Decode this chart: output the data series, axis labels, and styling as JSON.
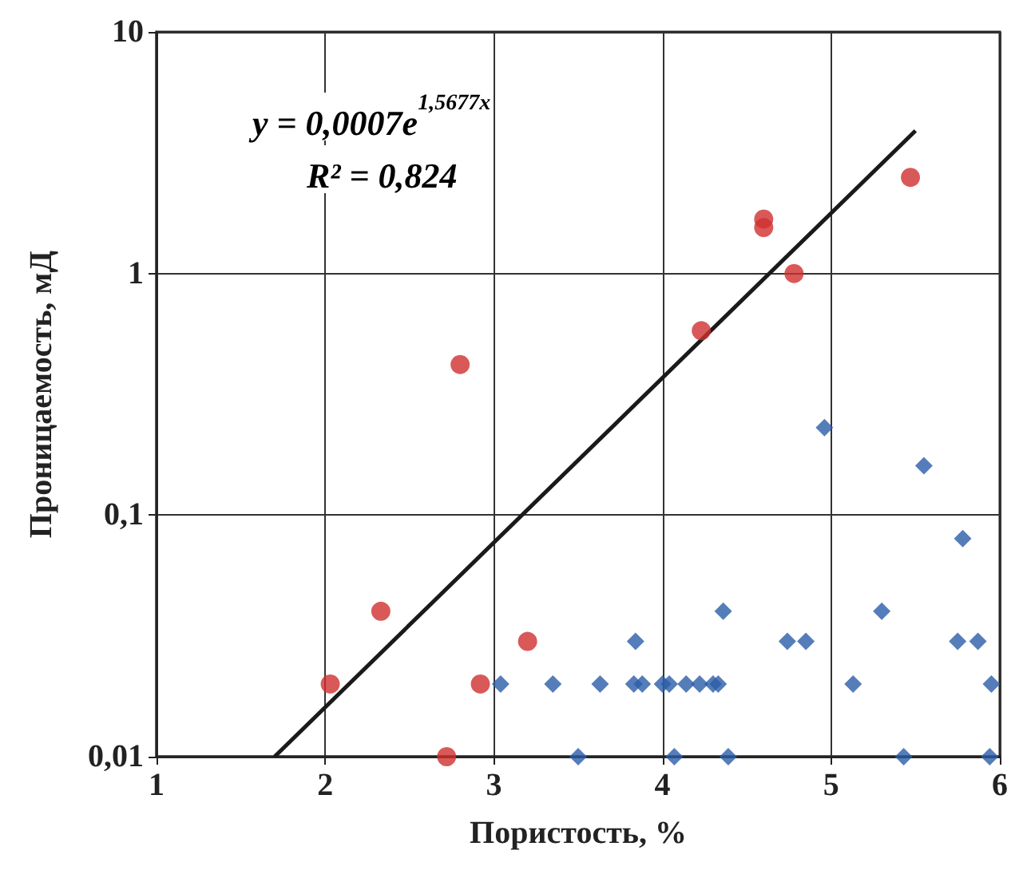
{
  "chart_data": {
    "type": "scatter",
    "xlabel": "Пористость, %",
    "ylabel": "Проницаемость, мД",
    "log": "y",
    "grid": true,
    "xlim": [
      1,
      6
    ],
    "xticks": [
      1,
      2,
      3,
      4,
      5,
      6
    ],
    "ylim": [
      0.01,
      10
    ],
    "yticks": [
      {
        "value": 0.01,
        "label": "0,01"
      },
      {
        "value": 0.1,
        "label": "0,1"
      },
      {
        "value": 1,
        "label": "1"
      },
      {
        "value": 10,
        "label": "10"
      }
    ],
    "annotations": [
      "y = 0,0007e$^{1,5677x}$",
      "R² = 0,824"
    ],
    "series": [
      {
        "marker": "circle",
        "color": "#d03030",
        "x": [
          2.03,
          2.33,
          2.72,
          2.8,
          2.92,
          3.2,
          4.23,
          4.6,
          4.6,
          4.78,
          5.47
        ],
        "values": [
          0.02,
          0.04,
          0.01,
          0.42,
          0.02,
          0.03,
          0.58,
          1.68,
          1.55,
          1.0,
          2.5
        ]
      },
      {
        "marker": "diamond",
        "color": "#2a5ca8",
        "x": [
          3.04,
          3.35,
          3.63,
          3.83,
          3.88,
          4.0,
          4.04,
          4.14,
          4.22,
          4.3,
          4.33,
          5.13,
          5.95,
          3.84,
          4.74,
          4.85,
          5.75,
          5.87,
          4.36,
          5.3,
          3.5,
          4.07,
          4.39,
          5.43,
          5.94,
          4.96,
          5.55,
          5.78
        ],
        "values": [
          0.02,
          0.02,
          0.02,
          0.02,
          0.02,
          0.02,
          0.02,
          0.02,
          0.02,
          0.02,
          0.02,
          0.02,
          0.02,
          0.03,
          0.03,
          0.03,
          0.03,
          0.03,
          0.04,
          0.04,
          0.01,
          0.01,
          0.01,
          0.01,
          0.01,
          0.23,
          0.16,
          0.08
        ]
      },
      {
        "type": "line",
        "marker": "none",
        "color": "#1a1a1a",
        "x": [
          1.7,
          5.5
        ],
        "values": [
          0.01,
          3.9
        ]
      }
    ]
  }
}
